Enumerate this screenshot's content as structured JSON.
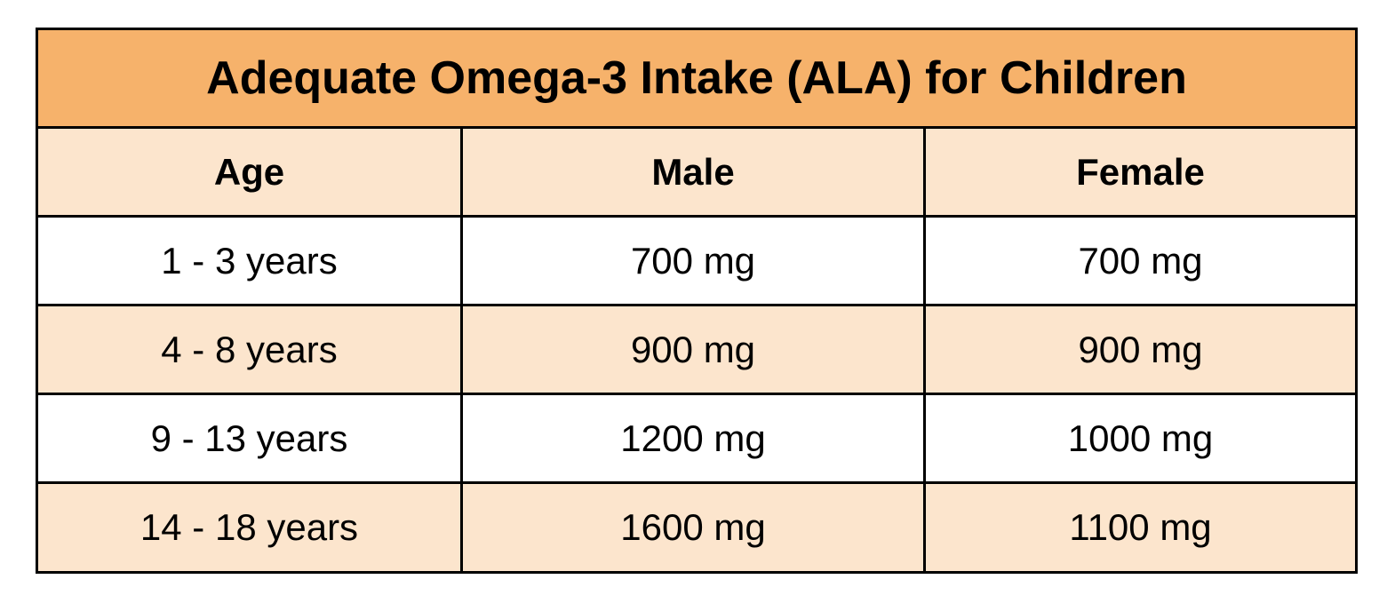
{
  "table": {
    "title": "Adequate Omega-3 Intake (ALA) for Children",
    "headers": [
      "Age",
      "Male",
      "Female"
    ],
    "rows": [
      [
        "1 - 3 years",
        "700 mg",
        "700 mg"
      ],
      [
        "4 - 8 years",
        "900 mg",
        "900 mg"
      ],
      [
        "9 - 13 years",
        "1200 mg",
        "1000 mg"
      ],
      [
        "14 - 18 years",
        "1600 mg",
        "1100 mg"
      ]
    ]
  },
  "colors": {
    "title_bg": "#f6b26b",
    "header_bg": "#fce5cd",
    "alt_row_bg": "#fce5cd",
    "row_bg": "#ffffff",
    "border": "#000000"
  },
  "chart_data": {
    "type": "table",
    "title": "Adequate Omega-3 Intake (ALA) for Children",
    "columns": [
      "Age",
      "Male",
      "Female"
    ],
    "categories": [
      "1 - 3 years",
      "4 - 8 years",
      "9 - 13 years",
      "14 - 18 years"
    ],
    "series": [
      {
        "name": "Male",
        "values": [
          700,
          900,
          1200,
          1600
        ],
        "unit": "mg"
      },
      {
        "name": "Female",
        "values": [
          700,
          900,
          1000,
          1100
        ],
        "unit": "mg"
      }
    ]
  }
}
